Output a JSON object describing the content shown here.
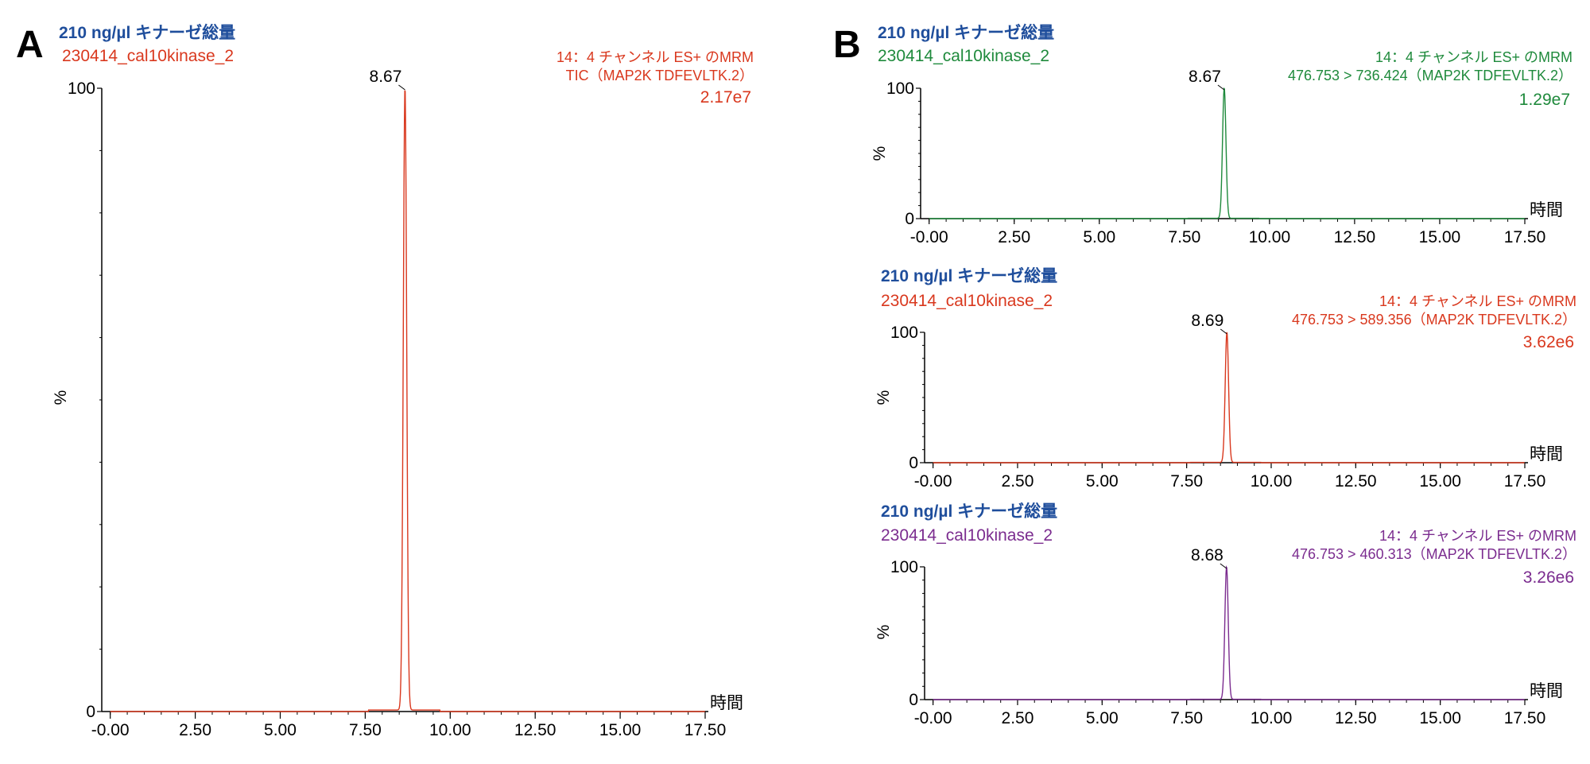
{
  "figure": {
    "panel_a_letter": "A",
    "panel_b_letter": "B"
  },
  "chart_data": [
    {
      "panel": "A",
      "type": "line",
      "title": "210 ng/µl キナーゼ総量",
      "sample": "230414_cal10kinase_2",
      "function_label": "14：4 チャンネル ES+ のMRM",
      "trace_label": "TIC（MAP2K TDFEVLTK.2）",
      "max_intensity": "2.17e7",
      "peak_label": "8.67",
      "peak_rt": 8.67,
      "peak_width": 0.05,
      "xlabel": "時間",
      "ylabel": "%",
      "xlim": [
        -0.25,
        17.5
      ],
      "ylim": [
        0,
        100
      ],
      "xticks": [
        "-0.00",
        "2.50",
        "5.00",
        "7.50",
        "10.00",
        "12.50",
        "15.00",
        "17.50"
      ],
      "yticks": [
        "0",
        "100"
      ],
      "series": [
        {
          "color": "#d9381e"
        }
      ]
    },
    {
      "panel": "B1",
      "type": "line",
      "title": "210 ng/µl キナーゼ総量",
      "sample": "230414_cal10kinase_2",
      "function_label": "14：4 チャンネル ES+ のMRM",
      "trace_label": "476.753 > 736.424（MAP2K TDFEVLTK.2）",
      "max_intensity": "1.29e7",
      "peak_label": "8.67",
      "peak_rt": 8.67,
      "peak_width": 0.05,
      "xlabel": "時間",
      "ylabel": "%",
      "xlim": [
        -0.25,
        17.5
      ],
      "ylim": [
        0,
        100
      ],
      "xticks": [
        "-0.00",
        "2.50",
        "5.00",
        "7.50",
        "10.00",
        "12.50",
        "15.00",
        "17.50"
      ],
      "yticks": [
        "0",
        "100"
      ],
      "series": [
        {
          "color": "#1f8a3c"
        }
      ]
    },
    {
      "panel": "B2",
      "type": "line",
      "title": "210 ng/µl キナーゼ総量",
      "sample": "230414_cal10kinase_2",
      "function_label": "14：4 チャンネル ES+ のMRM",
      "trace_label": "476.753 > 589.356（MAP2K TDFEVLTK.2）",
      "max_intensity": "3.62e6",
      "peak_label": "8.69",
      "peak_rt": 8.69,
      "peak_width": 0.05,
      "xlabel": "時間",
      "ylabel": "%",
      "xlim": [
        -0.25,
        17.5
      ],
      "ylim": [
        0,
        100
      ],
      "xticks": [
        "-0.00",
        "2.50",
        "5.00",
        "7.50",
        "10.00",
        "12.50",
        "15.00",
        "17.50"
      ],
      "yticks": [
        "0",
        "100"
      ],
      "series": [
        {
          "color": "#d9381e"
        }
      ]
    },
    {
      "panel": "B3",
      "type": "line",
      "title": "210 ng/µl キナーゼ総量",
      "sample": "230414_cal10kinase_2",
      "function_label": "14：4 チャンネル ES+ のMRM",
      "trace_label": "476.753 > 460.313（MAP2K TDFEVLTK.2）",
      "max_intensity": "3.26e6",
      "peak_label": "8.68",
      "peak_rt": 8.68,
      "peak_width": 0.05,
      "xlabel": "時間",
      "ylabel": "%",
      "xlim": [
        -0.25,
        17.5
      ],
      "ylim": [
        0,
        100
      ],
      "xticks": [
        "-0.00",
        "2.50",
        "5.00",
        "7.50",
        "10.00",
        "12.50",
        "15.00",
        "17.50"
      ],
      "yticks": [
        "0",
        "100"
      ],
      "series": [
        {
          "color": "#7b2c8f"
        }
      ]
    }
  ],
  "colors": {
    "title": "#1f4e9c",
    "axis": "#000000"
  }
}
